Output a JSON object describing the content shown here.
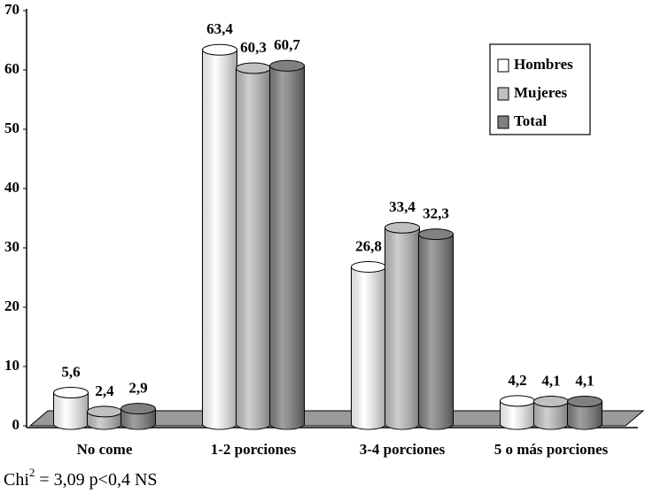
{
  "chart_data": {
    "type": "bar",
    "categories": [
      "No come",
      "1-2 porciones",
      "3-4 porciones",
      "5 o más porciones"
    ],
    "series": [
      {
        "name": "Hombres",
        "color": "#ffffff",
        "values": [
          5.6,
          63.4,
          26.8,
          4.2
        ],
        "value_labels": [
          "5,6",
          "63,4",
          "26,8",
          "4,2"
        ]
      },
      {
        "name": "Mujeres",
        "color": "#c0c0c0",
        "values": [
          2.4,
          60.3,
          33.4,
          4.1
        ],
        "value_labels": [
          "2,4",
          "60,3",
          "33,4",
          "4,1"
        ]
      },
      {
        "name": "Total",
        "color": "#808080",
        "values": [
          2.9,
          60.7,
          32.3,
          4.1
        ],
        "value_labels": [
          "2,9",
          "60,7",
          "32,3",
          "4,1"
        ]
      }
    ],
    "ylim": [
      0,
      70
    ],
    "yticks": [
      0,
      10,
      20,
      30,
      40,
      50,
      60,
      70
    ],
    "legend": "top-right",
    "annotation": {
      "base": "Chi",
      "sup": "2",
      "rest": " = 3,09  p<0,4 NS"
    }
  }
}
